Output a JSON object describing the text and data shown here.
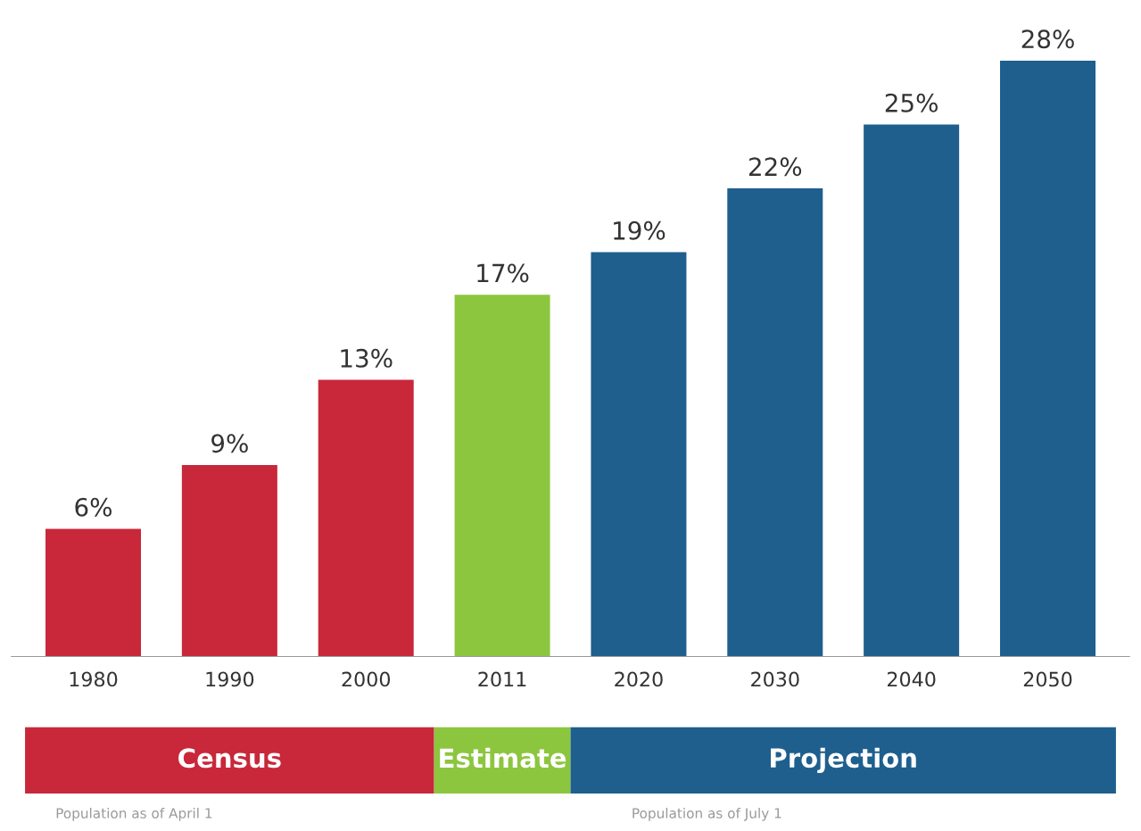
{
  "chart_data": {
    "type": "bar",
    "categories": [
      "1980",
      "1990",
      "2000",
      "2011",
      "2020",
      "2030",
      "2040",
      "2050"
    ],
    "values": [
      6,
      9,
      13,
      17,
      19,
      22,
      25,
      28
    ],
    "colors": [
      "#c8283a",
      "#c8283a",
      "#c8283a",
      "#8cc63f",
      "#1e5f8e",
      "#1e5f8e",
      "#1e5f8e",
      "#1e5f8e"
    ],
    "value_labels": [
      "6%",
      "9%",
      "13%",
      "17%",
      "19%",
      "22%",
      "25%",
      "28%"
    ],
    "annotations": [
      "Census",
      "Estimate",
      "Projection",
      "Population as of April 1",
      "Population as of July 1"
    ],
    "grid": false,
    "legend": false
  }
}
